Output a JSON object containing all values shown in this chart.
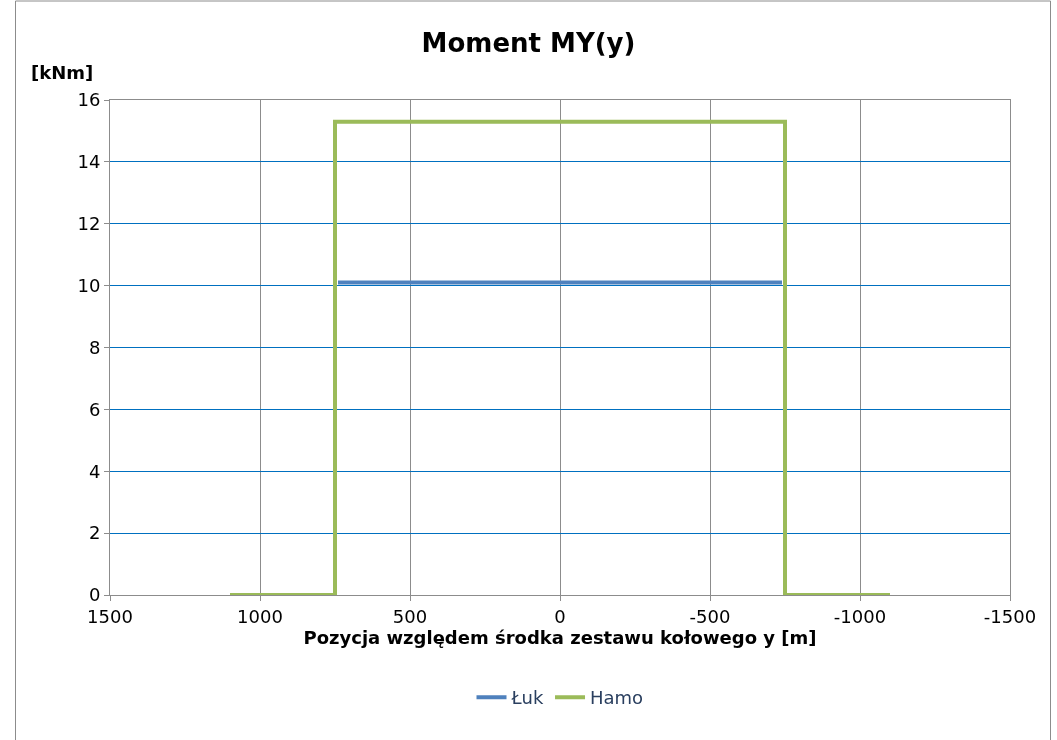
{
  "chart_data": {
    "type": "line",
    "title": "Moment MY(y)",
    "ylabel": "[kNm]",
    "xlabel": "Pozycja względem środka zestawu kołowego y [m]",
    "xlim": [
      1500,
      -1500
    ],
    "xticks": [
      1500,
      1000,
      500,
      0,
      -500,
      -1000,
      -1500
    ],
    "ylim": [
      0,
      16
    ],
    "yticks": [
      0,
      2,
      4,
      6,
      8,
      10,
      12,
      14,
      16
    ],
    "grid": true,
    "legend": "bottom",
    "marker": "none",
    "line_style": "solid",
    "series": [
      {
        "name": "Łuk",
        "color": "#4f81bd",
        "x": [
          740,
          -740
        ],
        "values": [
          10.1,
          10.1
        ]
      },
      {
        "name": "Hamo",
        "color": "#9bbb59",
        "x": [
          1100,
          750,
          750,
          -750,
          -750,
          -1100
        ],
        "values": [
          0,
          0,
          15.3,
          15.3,
          0,
          0
        ]
      }
    ]
  }
}
